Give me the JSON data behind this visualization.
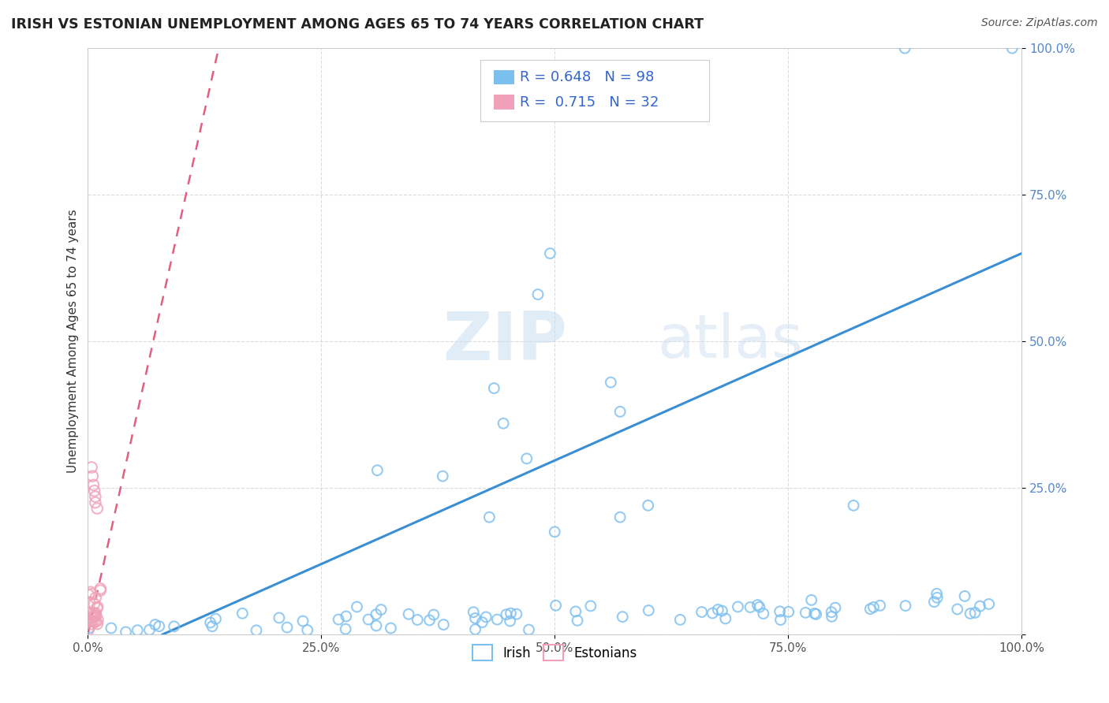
{
  "title": "IRISH VS ESTONIAN UNEMPLOYMENT AMONG AGES 65 TO 74 YEARS CORRELATION CHART",
  "source": "Source: ZipAtlas.com",
  "ylabel": "Unemployment Among Ages 65 to 74 years",
  "xlabel": "",
  "irish_color": "#7bbfef",
  "estonian_color": "#f0a0b8",
  "irish_line_color": "#3a8fd4",
  "estonian_line_color": "#e06080",
  "irish_R": 0.648,
  "irish_N": 98,
  "estonian_R": 0.715,
  "estonian_N": 32,
  "xlim": [
    0.0,
    1.0
  ],
  "ylim": [
    0.0,
    1.0
  ],
  "xticks": [
    0.0,
    0.25,
    0.5,
    0.75,
    1.0
  ],
  "yticks": [
    0.0,
    0.25,
    0.5,
    0.75,
    1.0
  ],
  "xticklabels": [
    "0.0%",
    "25.0%",
    "50.0%",
    "75.0%",
    "100.0%"
  ],
  "yticklabels_right": [
    "",
    "25.0%",
    "50.0%",
    "75.0%",
    "100.0%"
  ],
  "watermark": "ZIPatlas",
  "legend_label_1": "Irish",
  "legend_label_2": "Estonians",
  "irish_trend_x0": 0.08,
  "irish_trend_y0": 0.0,
  "irish_trend_x1": 1.0,
  "irish_trend_y1": 0.65,
  "est_trend_x0": 0.0,
  "est_trend_y0": 0.0,
  "est_trend_x1": 0.14,
  "est_trend_y1": 1.0
}
